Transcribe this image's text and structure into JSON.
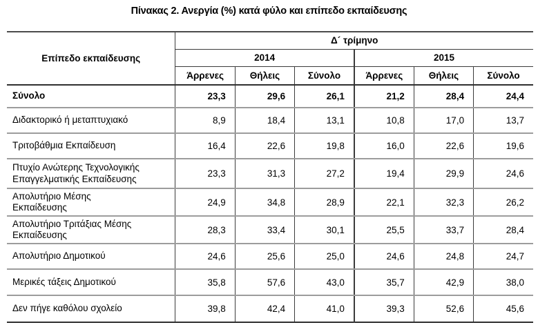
{
  "title": "Πίνακας 2. Ανεργία (%) κατά φύλο και επίπεδο εκπαίδευσης",
  "colors": {
    "grid_dark": "#3a3a3a",
    "row_separator": "#9c9c9c",
    "text": "#000000",
    "background": "#ffffff"
  },
  "table": {
    "col1_header": "Επίπεδο εκπαίδευσης",
    "period_header": "Δ´ τρίμηνο",
    "year_groups": [
      {
        "year": "2014",
        "columns": [
          "Άρρενες",
          "Θήλεις",
          "Σύνολο"
        ]
      },
      {
        "year": "2015",
        "columns": [
          "Άρρενες",
          "Θήλεις",
          "Σύνολο"
        ]
      }
    ],
    "rows": [
      {
        "label": "Σύνολο",
        "bold": true,
        "values": [
          "23,3",
          "29,6",
          "26,1",
          "21,2",
          "28,4",
          "24,4"
        ]
      },
      {
        "label": "Διδακτορικό ή μεταπτυχιακό",
        "bold": false,
        "values": [
          "8,9",
          "18,4",
          "13,1",
          "10,8",
          "17,0",
          "13,7"
        ]
      },
      {
        "label": "Τριτοβάθμια Εκπαίδευση",
        "bold": false,
        "values": [
          "16,4",
          "22,6",
          "19,8",
          "16,0",
          "22,6",
          "19,6"
        ]
      },
      {
        "label": "Πτυχίο Ανώτερης Τεχνολογικής\nΕπαγγελματικής Εκπαίδευσης",
        "bold": false,
        "values": [
          "23,3",
          "31,3",
          "27,2",
          "19,4",
          "29,9",
          "24,6"
        ]
      },
      {
        "label": "Απολυτήριο Μέσης\nΕκπαίδευσης",
        "bold": false,
        "values": [
          "24,9",
          "34,8",
          "28,9",
          "22,1",
          "32,3",
          "26,2"
        ]
      },
      {
        "label": "Απολυτήριο Τριτάξιας Μέσης\nΕκπαίδευσης",
        "bold": false,
        "values": [
          "28,3",
          "33,4",
          "30,1",
          "25,5",
          "33,7",
          "28,4"
        ]
      },
      {
        "label": "Απολυτήριο Δημοτικού",
        "bold": false,
        "values": [
          "24,6",
          "25,6",
          "25,0",
          "24,6",
          "24,8",
          "24,7"
        ]
      },
      {
        "label": "Μερικές τάξεις Δημοτικού",
        "bold": false,
        "values": [
          "35,8",
          "57,6",
          "43,0",
          "35,7",
          "42,9",
          "38,0"
        ]
      },
      {
        "label": "Δεν πήγε καθόλου σχολείο",
        "bold": false,
        "values": [
          "39,8",
          "42,4",
          "41,0",
          "39,3",
          "52,6",
          "45,6"
        ]
      }
    ]
  }
}
